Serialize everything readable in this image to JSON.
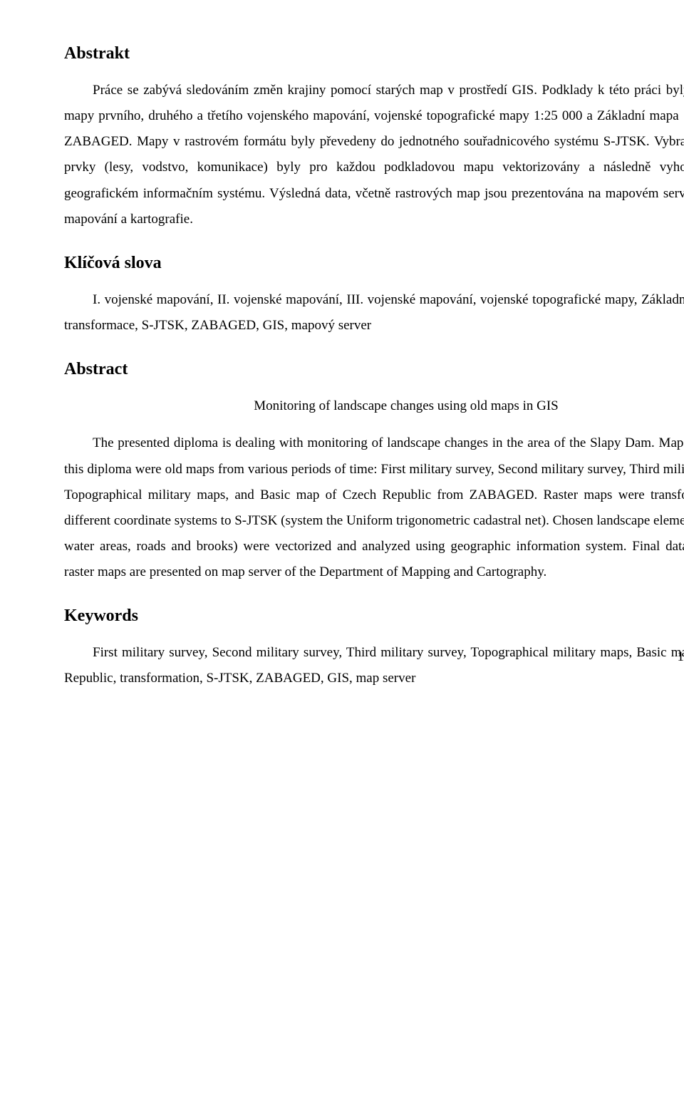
{
  "doc": {
    "sections": {
      "abstrakt": {
        "heading": "Abstrakt",
        "p1": "Práce se zabývá sledováním změn krajiny pomocí starých map v prostředí GIS. Podklady k této práci byly historické mapy prvního, druhého a třetího vojenského mapování, vojenské topografické mapy 1:25 000 a Základní mapa 1:25 000 ze ZABAGED. Mapy v rastrovém formátu byly převedeny do jednotného souřadnicového systému S-JTSK. Vybrané krajinné prvky (lesy, vodstvo, komunikace) byly pro každou podkladovou mapu vektorizovány a následně vyhodnoceny v geografickém informačním systému. Výsledná data, včetně rastrových map jsou prezentována na mapovém serveru katedry mapování a kartografie."
      },
      "klicova": {
        "heading": "Klíčová slova",
        "p1": "I. vojenské mapování, II. vojenské mapování, III. vojenské mapování, vojenské topografické mapy, Základní mapa ČR, transformace, S-JTSK, ZABAGED, GIS, mapový server"
      },
      "abstract": {
        "heading": "Abstract",
        "subtitle": "Monitoring of landscape changes using old maps in GIS",
        "p1": "The presented diploma is dealing with monitoring of landscape changes in the area of the Slapy Dam. Map sources for this diploma were old maps from various periods of time: First military survey, Second military survey, Third military survey, Topographical military maps, and Basic map of Czech Republic from ZABAGED. Raster maps were transformed from different coordinate systems to S-JTSK (system the Uniform trigonometric cadastral net). Chosen landscape elements (woods, water areas, roads and brooks) were vectorized and analyzed using geographic information system. Final data, including raster maps are presented on map server of the Department of Mapping and Cartography."
      },
      "keywords": {
        "heading": "Keywords",
        "p1": "First military survey, Second military survey, Third military survey, Topographical military maps, Basic map of Czech Republic, transformation, S-JTSK, ZABAGED, GIS, map server"
      }
    },
    "page_number": "1"
  }
}
